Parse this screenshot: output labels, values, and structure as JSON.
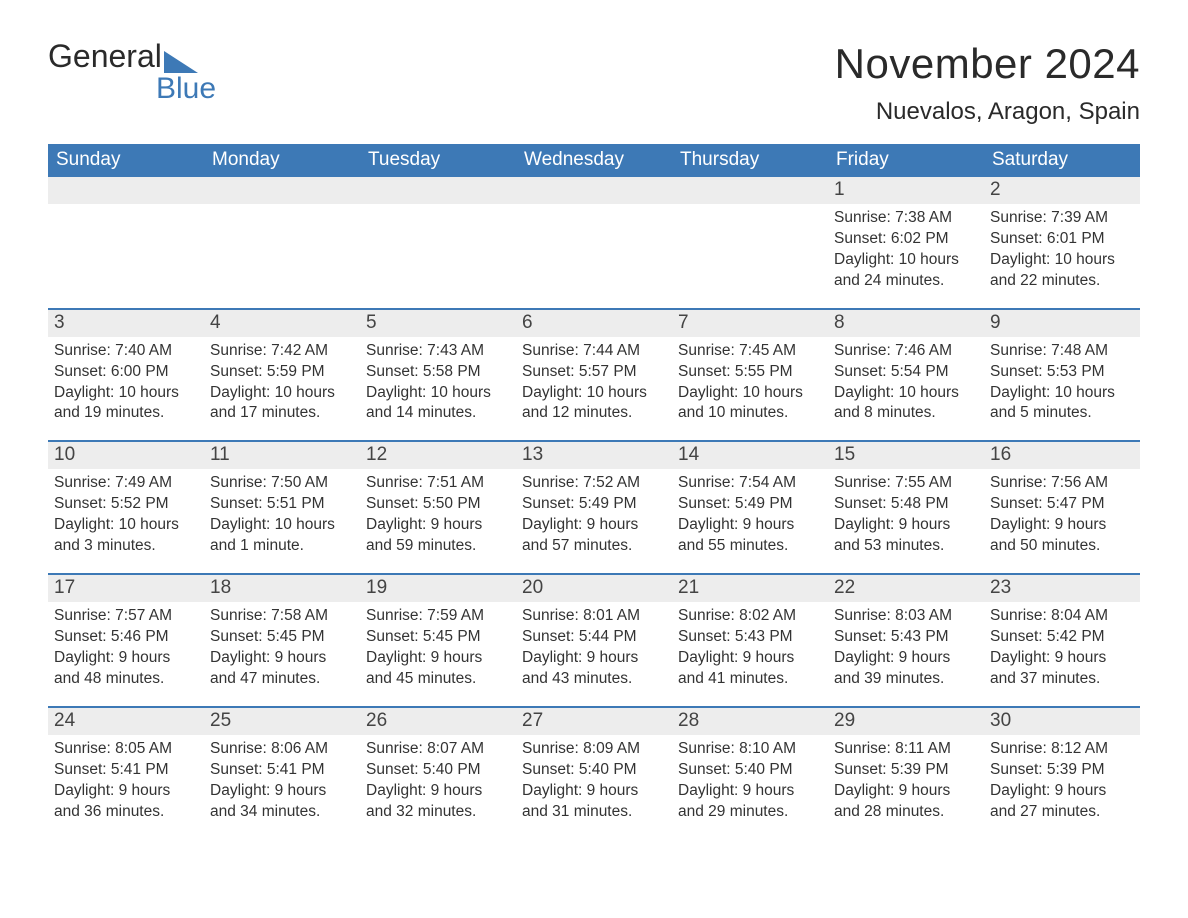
{
  "logo": {
    "word1": "General",
    "word2": "Blue"
  },
  "title": "November 2024",
  "location": "Nuevalos, Aragon, Spain",
  "colors": {
    "brand_blue": "#3d79b6",
    "header_bg": "#3d79b6",
    "header_text": "#ffffff",
    "daynum_bg": "#ededed",
    "body_text": "#333333",
    "page_bg": "#ffffff",
    "week_border": "#3d79b6"
  },
  "typography": {
    "title_fontsize": 42,
    "location_fontsize": 24,
    "dayhead_fontsize": 19,
    "daynum_fontsize": 19,
    "body_fontsize": 15.5,
    "font_family": "Arial"
  },
  "day_headers": [
    "Sunday",
    "Monday",
    "Tuesday",
    "Wednesday",
    "Thursday",
    "Friday",
    "Saturday"
  ],
  "weeks": [
    [
      {
        "blank": true
      },
      {
        "blank": true
      },
      {
        "blank": true
      },
      {
        "blank": true
      },
      {
        "blank": true
      },
      {
        "day": "1",
        "sunrise": "Sunrise: 7:38 AM",
        "sunset": "Sunset: 6:02 PM",
        "dl1": "Daylight: 10 hours",
        "dl2": "and 24 minutes."
      },
      {
        "day": "2",
        "sunrise": "Sunrise: 7:39 AM",
        "sunset": "Sunset: 6:01 PM",
        "dl1": "Daylight: 10 hours",
        "dl2": "and 22 minutes."
      }
    ],
    [
      {
        "day": "3",
        "sunrise": "Sunrise: 7:40 AM",
        "sunset": "Sunset: 6:00 PM",
        "dl1": "Daylight: 10 hours",
        "dl2": "and 19 minutes."
      },
      {
        "day": "4",
        "sunrise": "Sunrise: 7:42 AM",
        "sunset": "Sunset: 5:59 PM",
        "dl1": "Daylight: 10 hours",
        "dl2": "and 17 minutes."
      },
      {
        "day": "5",
        "sunrise": "Sunrise: 7:43 AM",
        "sunset": "Sunset: 5:58 PM",
        "dl1": "Daylight: 10 hours",
        "dl2": "and 14 minutes."
      },
      {
        "day": "6",
        "sunrise": "Sunrise: 7:44 AM",
        "sunset": "Sunset: 5:57 PM",
        "dl1": "Daylight: 10 hours",
        "dl2": "and 12 minutes."
      },
      {
        "day": "7",
        "sunrise": "Sunrise: 7:45 AM",
        "sunset": "Sunset: 5:55 PM",
        "dl1": "Daylight: 10 hours",
        "dl2": "and 10 minutes."
      },
      {
        "day": "8",
        "sunrise": "Sunrise: 7:46 AM",
        "sunset": "Sunset: 5:54 PM",
        "dl1": "Daylight: 10 hours",
        "dl2": "and 8 minutes."
      },
      {
        "day": "9",
        "sunrise": "Sunrise: 7:48 AM",
        "sunset": "Sunset: 5:53 PM",
        "dl1": "Daylight: 10 hours",
        "dl2": "and 5 minutes."
      }
    ],
    [
      {
        "day": "10",
        "sunrise": "Sunrise: 7:49 AM",
        "sunset": "Sunset: 5:52 PM",
        "dl1": "Daylight: 10 hours",
        "dl2": "and 3 minutes."
      },
      {
        "day": "11",
        "sunrise": "Sunrise: 7:50 AM",
        "sunset": "Sunset: 5:51 PM",
        "dl1": "Daylight: 10 hours",
        "dl2": "and 1 minute."
      },
      {
        "day": "12",
        "sunrise": "Sunrise: 7:51 AM",
        "sunset": "Sunset: 5:50 PM",
        "dl1": "Daylight: 9 hours",
        "dl2": "and 59 minutes."
      },
      {
        "day": "13",
        "sunrise": "Sunrise: 7:52 AM",
        "sunset": "Sunset: 5:49 PM",
        "dl1": "Daylight: 9 hours",
        "dl2": "and 57 minutes."
      },
      {
        "day": "14",
        "sunrise": "Sunrise: 7:54 AM",
        "sunset": "Sunset: 5:49 PM",
        "dl1": "Daylight: 9 hours",
        "dl2": "and 55 minutes."
      },
      {
        "day": "15",
        "sunrise": "Sunrise: 7:55 AM",
        "sunset": "Sunset: 5:48 PM",
        "dl1": "Daylight: 9 hours",
        "dl2": "and 53 minutes."
      },
      {
        "day": "16",
        "sunrise": "Sunrise: 7:56 AM",
        "sunset": "Sunset: 5:47 PM",
        "dl1": "Daylight: 9 hours",
        "dl2": "and 50 minutes."
      }
    ],
    [
      {
        "day": "17",
        "sunrise": "Sunrise: 7:57 AM",
        "sunset": "Sunset: 5:46 PM",
        "dl1": "Daylight: 9 hours",
        "dl2": "and 48 minutes."
      },
      {
        "day": "18",
        "sunrise": "Sunrise: 7:58 AM",
        "sunset": "Sunset: 5:45 PM",
        "dl1": "Daylight: 9 hours",
        "dl2": "and 47 minutes."
      },
      {
        "day": "19",
        "sunrise": "Sunrise: 7:59 AM",
        "sunset": "Sunset: 5:45 PM",
        "dl1": "Daylight: 9 hours",
        "dl2": "and 45 minutes."
      },
      {
        "day": "20",
        "sunrise": "Sunrise: 8:01 AM",
        "sunset": "Sunset: 5:44 PM",
        "dl1": "Daylight: 9 hours",
        "dl2": "and 43 minutes."
      },
      {
        "day": "21",
        "sunrise": "Sunrise: 8:02 AM",
        "sunset": "Sunset: 5:43 PM",
        "dl1": "Daylight: 9 hours",
        "dl2": "and 41 minutes."
      },
      {
        "day": "22",
        "sunrise": "Sunrise: 8:03 AM",
        "sunset": "Sunset: 5:43 PM",
        "dl1": "Daylight: 9 hours",
        "dl2": "and 39 minutes."
      },
      {
        "day": "23",
        "sunrise": "Sunrise: 8:04 AM",
        "sunset": "Sunset: 5:42 PM",
        "dl1": "Daylight: 9 hours",
        "dl2": "and 37 minutes."
      }
    ],
    [
      {
        "day": "24",
        "sunrise": "Sunrise: 8:05 AM",
        "sunset": "Sunset: 5:41 PM",
        "dl1": "Daylight: 9 hours",
        "dl2": "and 36 minutes."
      },
      {
        "day": "25",
        "sunrise": "Sunrise: 8:06 AM",
        "sunset": "Sunset: 5:41 PM",
        "dl1": "Daylight: 9 hours",
        "dl2": "and 34 minutes."
      },
      {
        "day": "26",
        "sunrise": "Sunrise: 8:07 AM",
        "sunset": "Sunset: 5:40 PM",
        "dl1": "Daylight: 9 hours",
        "dl2": "and 32 minutes."
      },
      {
        "day": "27",
        "sunrise": "Sunrise: 8:09 AM",
        "sunset": "Sunset: 5:40 PM",
        "dl1": "Daylight: 9 hours",
        "dl2": "and 31 minutes."
      },
      {
        "day": "28",
        "sunrise": "Sunrise: 8:10 AM",
        "sunset": "Sunset: 5:40 PM",
        "dl1": "Daylight: 9 hours",
        "dl2": "and 29 minutes."
      },
      {
        "day": "29",
        "sunrise": "Sunrise: 8:11 AM",
        "sunset": "Sunset: 5:39 PM",
        "dl1": "Daylight: 9 hours",
        "dl2": "and 28 minutes."
      },
      {
        "day": "30",
        "sunrise": "Sunrise: 8:12 AM",
        "sunset": "Sunset: 5:39 PM",
        "dl1": "Daylight: 9 hours",
        "dl2": "and 27 minutes."
      }
    ]
  ]
}
